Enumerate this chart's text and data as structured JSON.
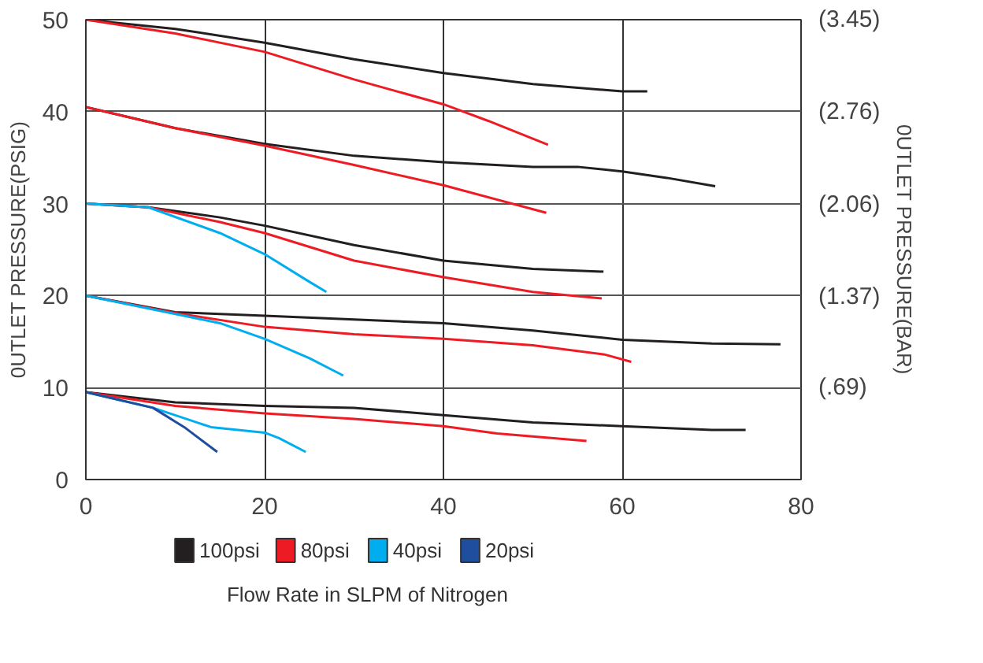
{
  "chart_data": {
    "type": "line",
    "xlabel": "Flow Rate in SLPM of Nitrogen",
    "ylabel": "0UTLET PRESSURE(PSIG)",
    "y2label": "0UTLET PRESSURE(BAR)",
    "xlim": [
      0,
      80
    ],
    "ylim": [
      0,
      50
    ],
    "xticks": [
      0,
      20,
      40,
      60,
      80
    ],
    "yticks": [
      0,
      10,
      20,
      30,
      40,
      50
    ],
    "y2lim": [
      0,
      3.45
    ],
    "y2ticks": [
      {
        "value": 3.45,
        "label": "(3.45)"
      },
      {
        "value": 2.76,
        "label": "(2.76)"
      },
      {
        "value": 2.06,
        "label": "(2.06)"
      },
      {
        "value": 1.37,
        "label": "(1.37)"
      },
      {
        "value": 0.69,
        "label": "(.69)"
      }
    ],
    "grid": true,
    "legend": "bottom",
    "marker": "none",
    "line_style": "solid",
    "series": [
      {
        "name": "100psi",
        "color": "#231f20",
        "x": [
          0,
          10,
          20,
          30,
          40,
          50,
          60,
          62.8
        ],
        "values": [
          50,
          49,
          47.5,
          45.7,
          44.2,
          43,
          42.2,
          42.2
        ]
      },
      {
        "color": "#231f20",
        "x": [
          0,
          10,
          20,
          30,
          40,
          50,
          55,
          60,
          65,
          70.4
        ],
        "values": [
          40.5,
          38.2,
          36.5,
          35.2,
          34.5,
          34,
          34,
          33.5,
          32.8,
          31.9
        ]
      },
      {
        "color": "#231f20",
        "x": [
          0,
          7,
          15,
          20,
          30,
          40,
          50,
          57.9
        ],
        "values": [
          30,
          29.6,
          28.5,
          27.6,
          25.5,
          23.8,
          22.9,
          22.6
        ]
      },
      {
        "color": "#231f20",
        "x": [
          0,
          10,
          20,
          30,
          40,
          50,
          60,
          70,
          77.7
        ],
        "values": [
          20,
          18.2,
          17.8,
          17.4,
          17,
          16.2,
          15.2,
          14.8,
          14.7
        ]
      },
      {
        "color": "#231f20",
        "x": [
          0,
          10,
          20,
          30,
          40,
          50,
          60,
          70,
          73.8
        ],
        "values": [
          9.5,
          8.4,
          8,
          7.8,
          7,
          6.2,
          5.8,
          5.4,
          5.4
        ]
      },
      {
        "name": "80psi",
        "color": "#ed1c24",
        "x": [
          0,
          10,
          20,
          30,
          40,
          45,
          51.7
        ],
        "values": [
          50,
          48.5,
          46.5,
          43.5,
          40.8,
          39,
          36.4
        ]
      },
      {
        "color": "#ed1c24",
        "x": [
          0,
          10,
          20,
          30,
          40,
          51.5
        ],
        "values": [
          40.5,
          38.2,
          36.3,
          34.2,
          32,
          29
        ]
      },
      {
        "color": "#ed1c24",
        "x": [
          0,
          7,
          15,
          20,
          30,
          40,
          50,
          57.7
        ],
        "values": [
          30,
          29.6,
          28,
          26.8,
          23.8,
          22,
          20.4,
          19.7
        ]
      },
      {
        "color": "#ed1c24",
        "x": [
          0,
          10,
          20,
          30,
          40,
          50,
          58,
          61
        ],
        "values": [
          20,
          18.1,
          16.6,
          15.8,
          15.3,
          14.6,
          13.6,
          12.8
        ]
      },
      {
        "color": "#ed1c24",
        "x": [
          0,
          10,
          20,
          30,
          40,
          46,
          56
        ],
        "values": [
          9.5,
          8,
          7.2,
          6.6,
          5.8,
          5,
          4.2
        ]
      },
      {
        "name": "40psi",
        "color": "#00aeef",
        "x": [
          0,
          7,
          15,
          20,
          25,
          26.9
        ],
        "values": [
          30,
          29.6,
          26.8,
          24.5,
          21.5,
          20.4
        ]
      },
      {
        "color": "#00aeef",
        "x": [
          0,
          10,
          15,
          20,
          25,
          28.8
        ],
        "values": [
          20,
          18,
          17,
          15.3,
          13.2,
          11.3
        ]
      },
      {
        "color": "#00aeef",
        "x": [
          0,
          7.5,
          14,
          20,
          21.6,
          24.6
        ],
        "values": [
          9.5,
          7.8,
          5.7,
          5.1,
          4.5,
          3
        ]
      },
      {
        "name": "20psi",
        "color": "#1f4e9e",
        "x": [
          0,
          7.5,
          11,
          14.7
        ],
        "values": [
          9.5,
          7.8,
          5.7,
          3
        ]
      }
    ]
  }
}
